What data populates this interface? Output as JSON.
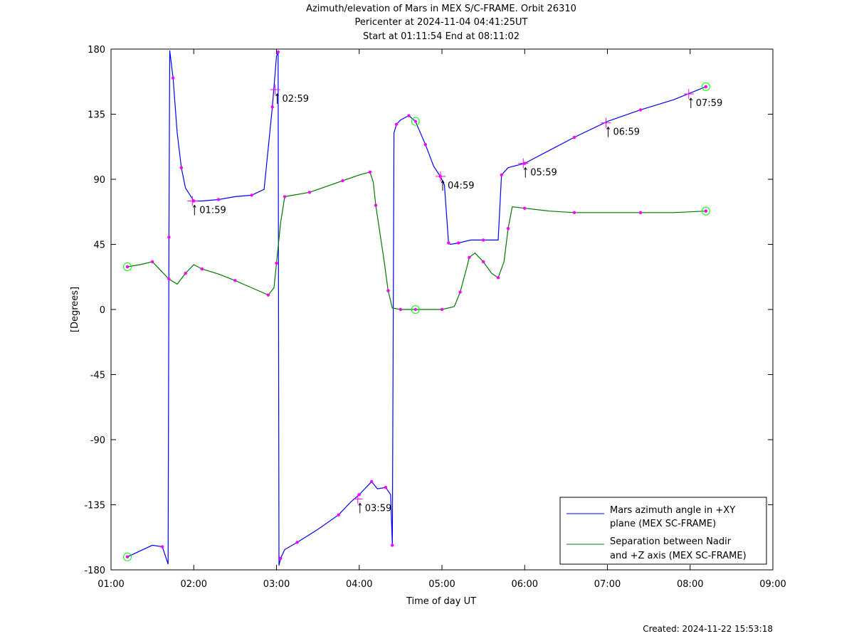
{
  "chart_data": {
    "type": "line",
    "title": [
      "Azimuth/elevation of Mars in MEX S/C-FRAME.  Orbit 26310",
      "Pericenter at 2024-11-04 04:41:25UT",
      "Start at 01:11:54 End at 08:11:02"
    ],
    "xlabel": "Time of day UT",
    "ylabel": "[Degrees]",
    "xlim_hours": [
      1,
      9
    ],
    "ylim": [
      -180,
      180
    ],
    "x_ticks": [
      {
        "value": 1,
        "label": "01:00"
      },
      {
        "value": 2,
        "label": "02:00"
      },
      {
        "value": 3,
        "label": "03:00"
      },
      {
        "value": 4,
        "label": "04:00"
      },
      {
        "value": 5,
        "label": "05:00"
      },
      {
        "value": 6,
        "label": "06:00"
      },
      {
        "value": 7,
        "label": "07:00"
      },
      {
        "value": 8,
        "label": "08:00"
      },
      {
        "value": 9,
        "label": "09:00"
      }
    ],
    "y_ticks": [
      {
        "value": 180,
        "label": "180"
      },
      {
        "value": 135,
        "label": "135"
      },
      {
        "value": 90,
        "label": "90"
      },
      {
        "value": 45,
        "label": "45"
      },
      {
        "value": 0,
        "label": "0"
      },
      {
        "value": -45,
        "label": "-45"
      },
      {
        "value": -90,
        "label": "-90"
      },
      {
        "value": -135,
        "label": "-135"
      },
      {
        "value": -180,
        "label": "-180"
      }
    ],
    "grid": false,
    "legend_position": "bottom-right",
    "series": [
      {
        "name": "Mars azimuth angle in +XY plane (MEX SC-FRAME)",
        "legend_lines": [
          "Mars azimuth angle in +XY",
          "plane (MEX SC-FRAME)"
        ],
        "color": "#0000ff",
        "x": [
          1.198,
          1.5,
          1.62,
          1.69,
          1.7,
          1.71,
          1.75,
          1.8,
          1.85,
          1.9,
          2.0,
          2.1,
          2.3,
          2.5,
          2.7,
          2.85,
          2.95,
          3.0,
          3.02,
          3.03,
          3.05,
          3.1,
          3.25,
          3.5,
          3.75,
          3.9,
          4.0,
          4.1,
          4.15,
          4.22,
          4.32,
          4.38,
          4.4,
          4.42,
          4.45,
          4.5,
          4.6,
          4.68,
          4.8,
          4.9,
          4.98,
          5.03,
          5.08,
          5.1,
          5.2,
          5.35,
          5.5,
          5.68,
          5.72,
          5.8,
          6.0,
          6.3,
          6.6,
          7.0,
          7.4,
          7.8,
          8.19
        ],
        "y": [
          -171,
          -163,
          -164,
          -176,
          50,
          179,
          160,
          122,
          98,
          84,
          75,
          75,
          76,
          78,
          79,
          83,
          140,
          175,
          178,
          -177,
          -172,
          -166,
          -161,
          -152,
          -142,
          -133,
          -128,
          -122,
          -119,
          -124,
          -123,
          -128,
          -163,
          122,
          128,
          131,
          134,
          130,
          114,
          99,
          92,
          86,
          46,
          45,
          46,
          48,
          48,
          48,
          93,
          98,
          101,
          110,
          119,
          130,
          138,
          145,
          154
        ]
      },
      {
        "name": "Separation between Nadir and +Z axis (MEX SC-FRAME)",
        "legend_lines": [
          "Separation between Nadir",
          "and +Z axis (MEX SC-FRAME)"
        ],
        "color": "#007700",
        "x": [
          1.198,
          1.35,
          1.5,
          1.6,
          1.7,
          1.8,
          1.9,
          2.0,
          2.1,
          2.3,
          2.5,
          2.7,
          2.9,
          2.97,
          3.0,
          3.05,
          3.1,
          3.2,
          3.4,
          3.6,
          3.8,
          4.0,
          4.13,
          4.17,
          4.2,
          4.3,
          4.35,
          4.4,
          4.5,
          4.68,
          5.0,
          5.15,
          5.22,
          5.3,
          5.33,
          5.4,
          5.5,
          5.6,
          5.68,
          5.75,
          5.8,
          5.85,
          6.0,
          6.3,
          6.6,
          7.0,
          7.4,
          7.8,
          8.19
        ],
        "y": [
          29.5,
          31,
          33,
          27,
          21,
          17.5,
          25,
          31,
          28,
          24.5,
          20,
          15,
          10,
          15,
          32,
          60,
          78,
          79,
          81,
          85,
          89,
          93,
          95,
          88,
          72,
          34,
          13,
          1,
          0,
          0,
          0,
          2,
          12,
          29,
          36,
          39,
          33,
          25,
          22,
          33,
          56,
          71,
          70,
          68,
          67,
          67,
          67,
          67,
          68
        ]
      }
    ],
    "circle_markers": [
      {
        "series": 0,
        "x": 1.198,
        "y": -171
      },
      {
        "series": 0,
        "x": 4.68,
        "y": 130
      },
      {
        "series": 0,
        "x": 8.19,
        "y": 154
      },
      {
        "series": 1,
        "x": 1.198,
        "y": 29.5
      },
      {
        "series": 1,
        "x": 4.68,
        "y": 0
      },
      {
        "series": 1,
        "x": 8.19,
        "y": 68
      }
    ],
    "annotations": [
      {
        "label": "01:59",
        "x": 1.983,
        "y": 75
      },
      {
        "label": "02:59",
        "x": 2.983,
        "y": 152
      },
      {
        "label": "03:59",
        "x": 3.983,
        "y": -131
      },
      {
        "label": "04:59",
        "x": 4.983,
        "y": 92
      },
      {
        "label": "05:59",
        "x": 5.983,
        "y": 101
      },
      {
        "label": "06:59",
        "x": 6.983,
        "y": 129
      },
      {
        "label": "07:59",
        "x": 7.983,
        "y": 149
      }
    ]
  },
  "footer": {
    "created": "Created: 2024-11-22 15:53:18"
  }
}
